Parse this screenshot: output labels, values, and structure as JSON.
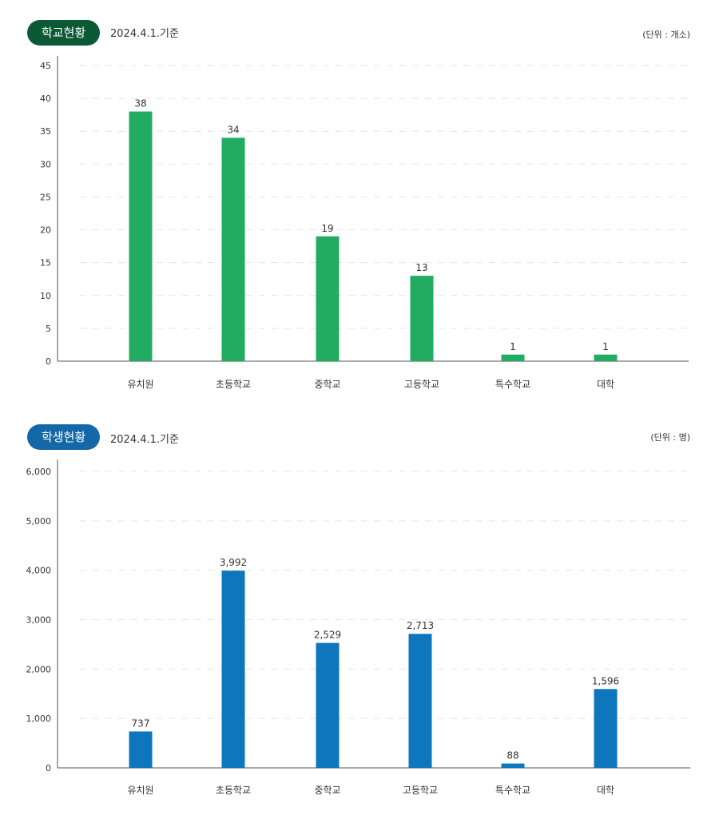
{
  "panels": [
    {
      "badge": "학교현황",
      "date": "2024.4.1.기준",
      "unit": "(단위 : 개소)",
      "color": "#22ac62"
    },
    {
      "badge": "학생현황",
      "date": "2024.4.1.기준",
      "unit": "(단위 : 명)",
      "color": "#0e76bc"
    }
  ],
  "chart_data": [
    {
      "type": "bar",
      "title": "학교현황",
      "categories": [
        "유치원",
        "초등학교",
        "중학교",
        "고등학교",
        "특수학교",
        "대학"
      ],
      "values": [
        38,
        34,
        19,
        13,
        1,
        1
      ],
      "value_labels": [
        "38",
        "34",
        "19",
        "13",
        "1",
        "1"
      ],
      "ylim": [
        0,
        45
      ],
      "yticks": [
        0,
        5,
        10,
        15,
        20,
        25,
        30,
        35,
        40,
        45
      ],
      "ytick_labels": [
        "0",
        "5",
        "10",
        "15",
        "20",
        "25",
        "30",
        "35",
        "40",
        "45"
      ],
      "grid": true,
      "color": "#22ac62"
    },
    {
      "type": "bar",
      "title": "학생현황",
      "categories": [
        "유치원",
        "초등학교",
        "중학교",
        "고등학교",
        "특수학교",
        "대학"
      ],
      "values": [
        737,
        3992,
        2529,
        2713,
        88,
        1596
      ],
      "value_labels": [
        "737",
        "3,992",
        "2,529",
        "2,713",
        "88",
        "1,596"
      ],
      "ylim": [
        0,
        6000
      ],
      "yticks": [
        0,
        1000,
        2000,
        3000,
        4000,
        5000,
        6000
      ],
      "ytick_labels": [
        "0",
        "1,000",
        "2,000",
        "3,000",
        "4,000",
        "5,000",
        "6,000"
      ],
      "grid": true,
      "color": "#0e76bc"
    }
  ]
}
